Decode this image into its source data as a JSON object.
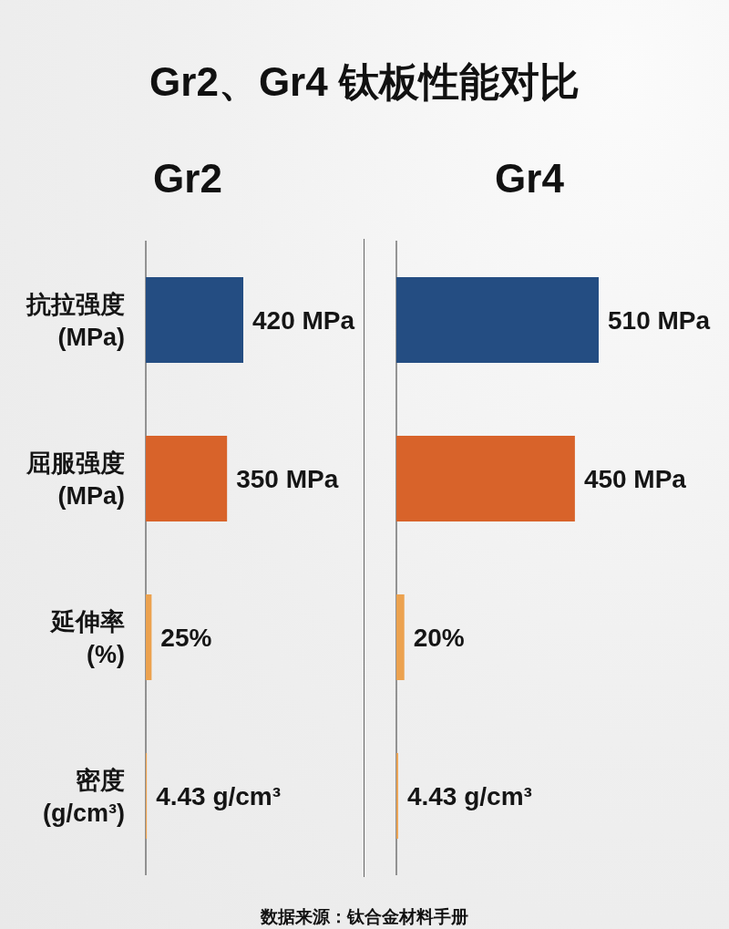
{
  "chart_data": [
    {
      "type": "bar",
      "orientation": "horizontal",
      "title": "Gr2、Gr4 钛板性能对比",
      "subtitle": "Gr2",
      "categories": [
        "抗拉强度\n(MPa)",
        "屈服强度\n(MPa)",
        "延伸率\n(%)",
        "密度\n(g/cm³)"
      ],
      "values": [
        420,
        350,
        25,
        4.43
      ],
      "colors": [
        "#244d82",
        "#d8632a",
        "#eca24f",
        "#eca24f"
      ],
      "value_labels": [
        "420 MPa",
        "350 MPa",
        "25%",
        "4.43 g/cm³"
      ],
      "tick_labels": "y",
      "annotations": [
        "数据来源：钛合金材料手册"
      ]
    },
    {
      "type": "bar",
      "orientation": "horizontal",
      "subtitle": "Gr4",
      "categories": [
        null,
        null,
        null,
        null
      ],
      "values": [
        510,
        450,
        20,
        4.43
      ],
      "colors": [
        "#244d82",
        "#d8632a",
        "#eca24f",
        "#eca24f"
      ],
      "value_labels": [
        "510 MPa",
        "450 MPa",
        "20%",
        "4.43 g/cm³"
      ],
      "tick_labels": false
    }
  ]
}
